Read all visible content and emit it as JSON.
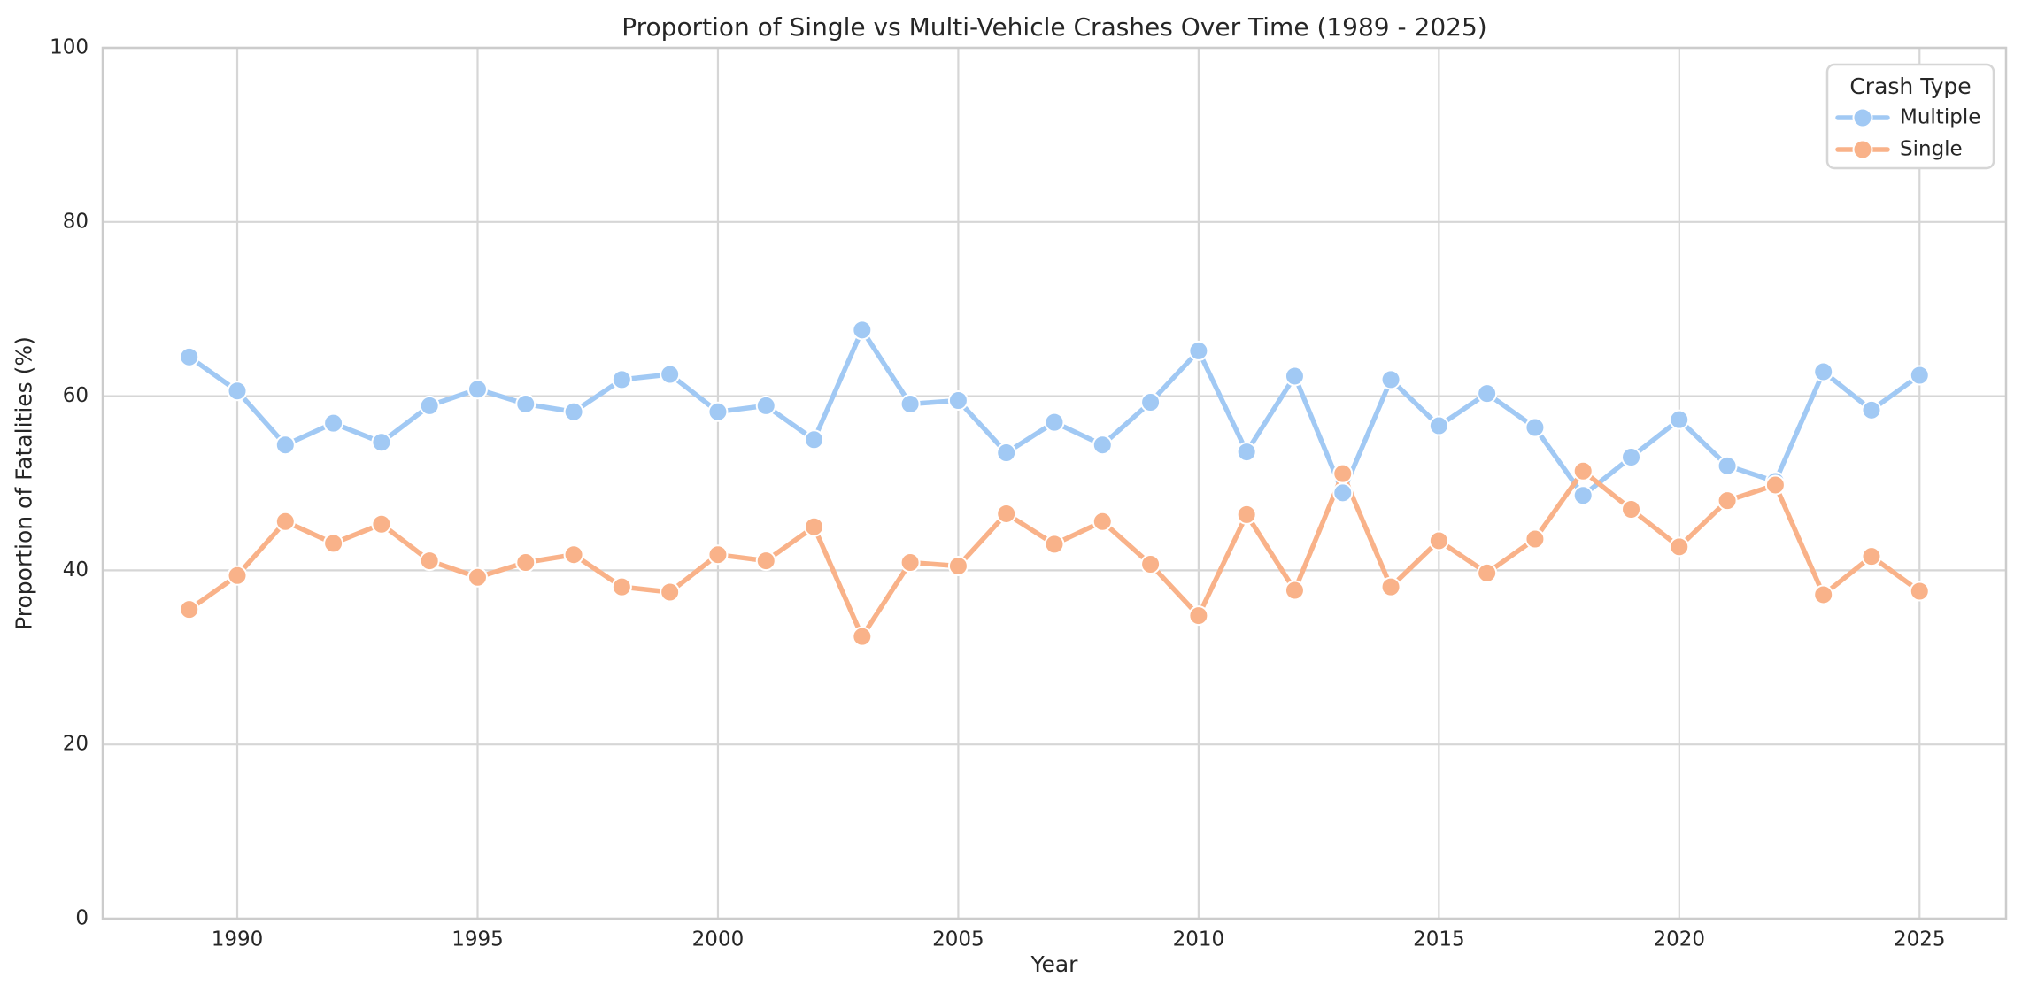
{
  "chart_data": {
    "type": "line",
    "title": "Proportion of Single vs Multi-Vehicle Crashes Over Time (1989 - 2025)",
    "xlabel": "Year",
    "ylabel": "Proportion of Fatalities (%)",
    "x": [
      1989,
      1990,
      1991,
      1992,
      1993,
      1994,
      1995,
      1996,
      1997,
      1998,
      1999,
      2000,
      2001,
      2002,
      2003,
      2004,
      2005,
      2006,
      2007,
      2008,
      2009,
      2010,
      2011,
      2012,
      2013,
      2014,
      2015,
      2016,
      2017,
      2018,
      2019,
      2020,
      2021,
      2022,
      2023,
      2024,
      2025
    ],
    "series": [
      {
        "name": "Multiple",
        "color": "#a1c9f4",
        "values": [
          64.5,
          60.6,
          54.4,
          56.9,
          54.7,
          58.9,
          60.8,
          59.1,
          58.2,
          61.9,
          62.5,
          58.2,
          58.9,
          55.0,
          67.6,
          59.1,
          59.5,
          53.5,
          57.0,
          54.4,
          59.3,
          65.2,
          53.6,
          62.3,
          48.9,
          61.9,
          56.6,
          60.3,
          56.4,
          48.6,
          53.0,
          57.3,
          52.0,
          50.2,
          62.8,
          58.4,
          62.4
        ]
      },
      {
        "name": "Single",
        "color": "#f9b289",
        "values": [
          35.5,
          39.4,
          45.6,
          43.1,
          45.3,
          41.1,
          39.2,
          40.9,
          41.8,
          38.1,
          37.5,
          41.8,
          41.1,
          45.0,
          32.4,
          40.9,
          40.5,
          46.5,
          43.0,
          45.6,
          40.7,
          34.8,
          46.4,
          37.7,
          51.1,
          38.1,
          43.4,
          39.7,
          43.6,
          51.4,
          47.0,
          42.7,
          48.0,
          49.8,
          37.2,
          41.6,
          37.6
        ]
      }
    ],
    "legend": {
      "title": "Crash Type",
      "position": "upper right"
    },
    "xlim": [
      1987.2,
      2026.8
    ],
    "ylim": [
      0,
      100
    ],
    "xticks": [
      1990,
      1995,
      2000,
      2005,
      2010,
      2015,
      2020,
      2025
    ],
    "yticks": [
      0,
      20,
      40,
      60,
      80,
      100
    ],
    "grid": true,
    "colors": {
      "grid": "#d6d6d6",
      "spine": "#cccccc",
      "text": "#262626",
      "background": "#ffffff",
      "marker_edge": "#ffffff",
      "legend_border": "#d6d6d6"
    }
  }
}
